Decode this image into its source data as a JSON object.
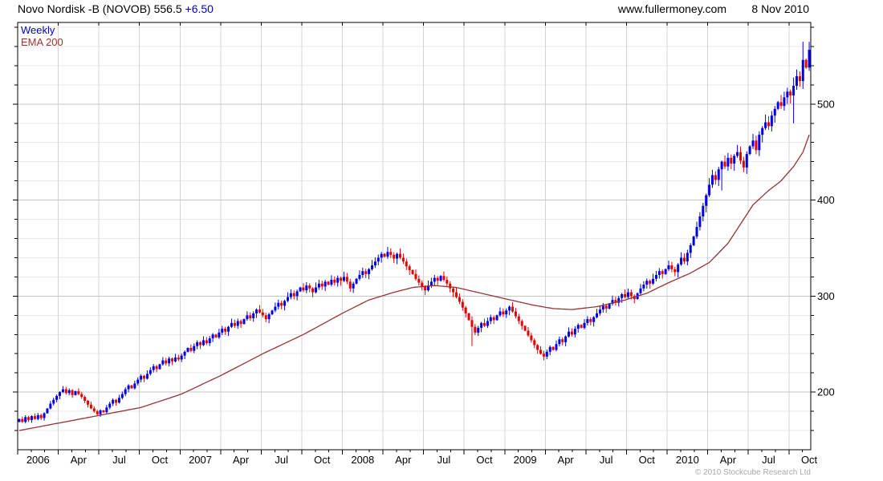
{
  "header": {
    "instrument_and_price": "Novo Nordisk -B (NOVOB) 556.5",
    "change": "+6.50",
    "website": "www.fullermoney.com",
    "date": "8 Nov 2010"
  },
  "legend": {
    "timeframe": "Weekly",
    "overlay": "EMA 200"
  },
  "footer": {
    "copyright": "© 2010 Stockcube Research Ltd"
  },
  "colors": {
    "up": "#0000E6",
    "down": "#E80000",
    "ema": "#993333",
    "grid_vertical": "#D4D4D4",
    "grid_minor": "#E8E8E8",
    "grid_major": "#C4C4C4",
    "axis": "#000000",
    "label": "#000000"
  },
  "chart_data": {
    "type": "candlestick",
    "title": "Novo Nordisk -B (NOVOB) 556.5 +6.50",
    "timeframe": "Weekly",
    "overlay": "EMA 200",
    "last_price": 556.5,
    "change": 6.5,
    "y_axis": {
      "min": 140,
      "max": 585,
      "minor_step": 20,
      "major_step": 100,
      "tick_labels": [
        "200",
        "300",
        "400",
        "500"
      ],
      "tick_values": [
        200,
        300,
        400,
        500
      ],
      "side": "right"
    },
    "x_axis": {
      "start": "Jan 2006",
      "end": "8 Nov 2010",
      "weeks_per_quarter": 13,
      "tick_labels": [
        "2006",
        "Apr",
        "Jul",
        "Oct",
        "2007",
        "Apr",
        "Jul",
        "Oct",
        "2008",
        "Apr",
        "Jul",
        "Oct",
        "2009",
        "Apr",
        "Jul",
        "Oct",
        "2010",
        "Apr",
        "Jul",
        "Oct"
      ],
      "tick_week_indices": [
        0,
        13,
        26,
        39,
        52,
        65,
        78,
        91,
        104,
        117,
        130,
        143,
        156,
        169,
        182,
        195,
        208,
        221,
        234,
        247
      ]
    },
    "weekly_close": [
      172,
      169,
      174,
      171,
      175,
      172,
      176,
      173,
      178,
      183,
      188,
      192,
      196,
      200,
      203,
      199,
      202,
      197,
      201,
      198,
      195,
      191,
      187,
      183,
      180,
      177,
      181,
      179,
      184,
      188,
      192,
      189,
      194,
      198,
      203,
      207,
      204,
      209,
      213,
      217,
      214,
      219,
      223,
      227,
      224,
      229,
      233,
      230,
      235,
      232,
      236,
      234,
      238,
      242,
      246,
      243,
      248,
      252,
      249,
      254,
      251,
      256,
      260,
      257,
      262,
      266,
      263,
      268,
      272,
      269,
      274,
      271,
      276,
      280,
      277,
      282,
      286,
      283,
      280,
      276,
      281,
      285,
      289,
      293,
      290,
      295,
      299,
      303,
      300,
      305,
      309,
      306,
      311,
      308,
      304,
      309,
      313,
      310,
      315,
      312,
      317,
      314,
      319,
      316,
      320,
      315,
      308,
      313,
      318,
      322,
      326,
      323,
      328,
      332,
      336,
      340,
      344,
      341,
      346,
      343,
      339,
      344,
      340,
      336,
      331,
      327,
      323,
      318,
      314,
      310,
      306,
      311,
      315,
      319,
      316,
      321,
      317,
      313,
      308,
      304,
      299,
      294,
      288,
      282,
      275,
      268,
      262,
      267,
      272,
      269,
      274,
      278,
      275,
      280,
      284,
      281,
      285,
      289,
      284,
      279,
      274,
      269,
      264,
      259,
      254,
      249,
      244,
      240,
      237,
      242,
      247,
      244,
      250,
      255,
      252,
      258,
      263,
      260,
      266,
      270,
      267,
      272,
      276,
      273,
      278,
      282,
      286,
      290,
      287,
      292,
      296,
      293,
      298,
      302,
      299,
      304,
      300,
      297,
      303,
      308,
      312,
      316,
      313,
      318,
      322,
      326,
      323,
      328,
      332,
      328,
      325,
      333,
      340,
      336,
      345,
      353,
      362,
      372,
      383,
      394,
      405,
      416,
      426,
      421,
      432,
      440,
      435,
      444,
      438,
      446,
      450,
      441,
      434,
      448,
      456,
      462,
      452,
      468,
      475,
      481,
      477,
      488,
      495,
      502,
      498,
      507,
      513,
      509,
      519,
      529,
      524,
      546,
      538,
      556.5
    ],
    "wick_overrides": {
      "145": {
        "low": 248
      },
      "168": {
        "low": 233
      },
      "225": {
        "low": 410
      },
      "248": {
        "low": 480
      },
      "251": {
        "high": 565
      }
    },
    "ema_anchors": [
      [
        0,
        160
      ],
      [
        13,
        168
      ],
      [
        26,
        176
      ],
      [
        39,
        184
      ],
      [
        52,
        198
      ],
      [
        65,
        218
      ],
      [
        78,
        240
      ],
      [
        91,
        260
      ],
      [
        104,
        283
      ],
      [
        112,
        296
      ],
      [
        120,
        304
      ],
      [
        126,
        309
      ],
      [
        133,
        311
      ],
      [
        140,
        309
      ],
      [
        148,
        303
      ],
      [
        156,
        297
      ],
      [
        164,
        291
      ],
      [
        171,
        287
      ],
      [
        177,
        286
      ],
      [
        185,
        289
      ],
      [
        193,
        295
      ],
      [
        201,
        303
      ],
      [
        208,
        314
      ],
      [
        215,
        324
      ],
      [
        221,
        335
      ],
      [
        227,
        355
      ],
      [
        231,
        375
      ],
      [
        235,
        395
      ],
      [
        240,
        410
      ],
      [
        244,
        420
      ],
      [
        248,
        435
      ],
      [
        251,
        450
      ],
      [
        253,
        468
      ]
    ]
  }
}
